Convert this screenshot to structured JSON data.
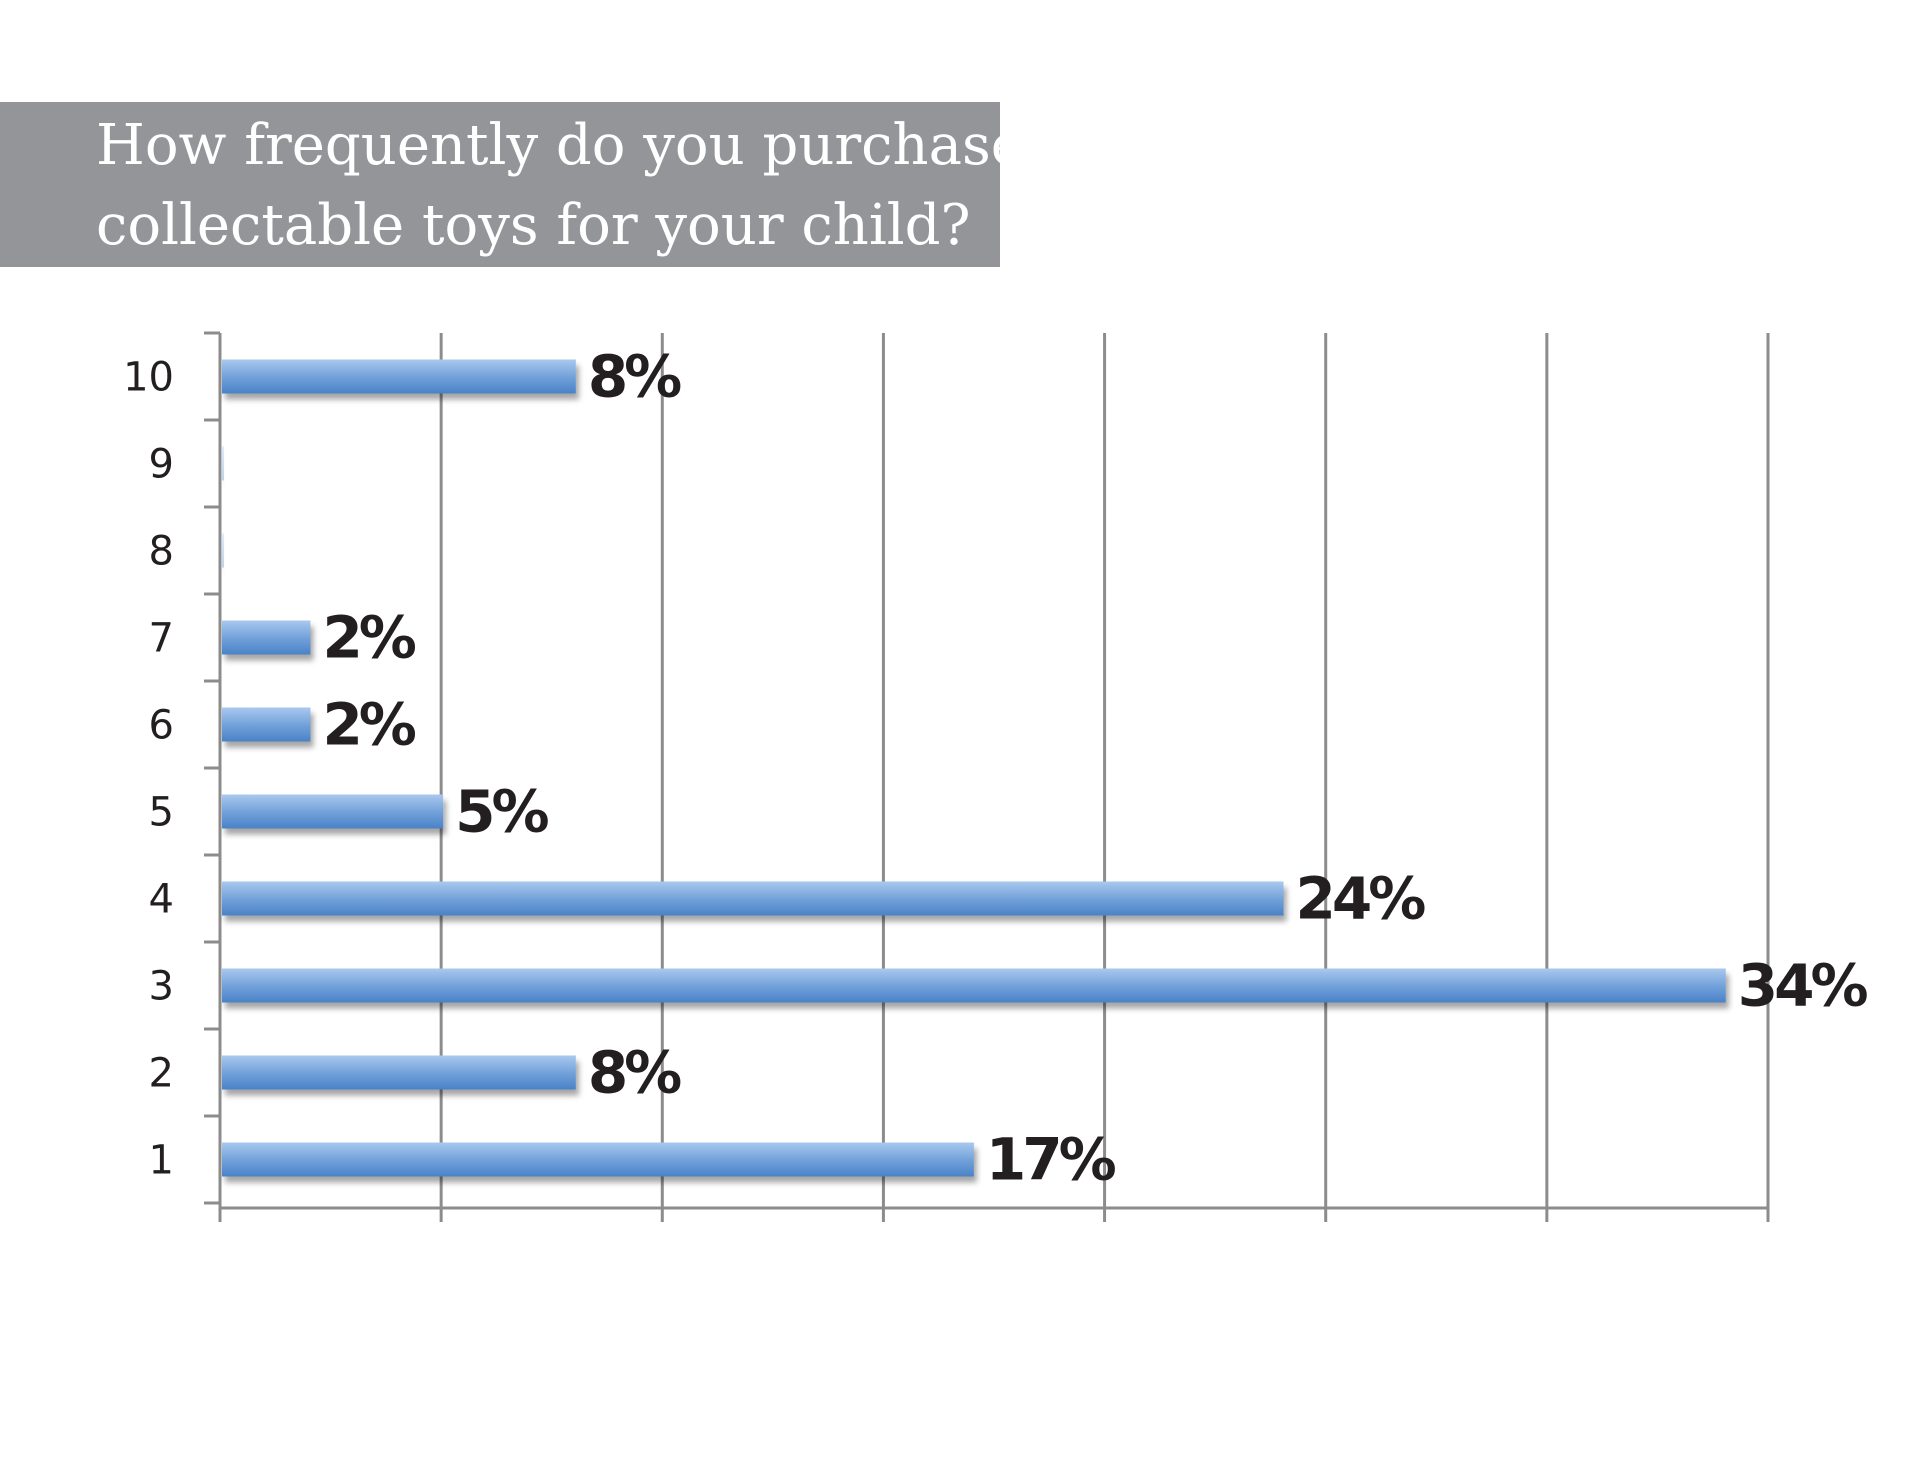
{
  "title": {
    "line1": "How frequently do you purchase",
    "line2": "collectable toys for your child?"
  },
  "colors": {
    "banner": "#939598",
    "bar": "#6f9fd8",
    "bar_light": "#a9c8ee",
    "bar_dark": "#4a82c8",
    "grid": "#8c8c8c",
    "text": "#231f20"
  },
  "chart_data": {
    "type": "bar",
    "orientation": "horizontal",
    "title": "How frequently do you purchase collectable toys for your child?",
    "categories": [
      "10",
      "9",
      "8",
      "7",
      "6",
      "5",
      "4",
      "3",
      "2",
      "1"
    ],
    "values": [
      8,
      0,
      0,
      2,
      2,
      5,
      24,
      34,
      8,
      17
    ],
    "value_labels": [
      "8%",
      "",
      "",
      "2%",
      "2%",
      "5%",
      "24%",
      "34%",
      "8%",
      "17%"
    ],
    "xlim": [
      0,
      35
    ],
    "grid": true,
    "legend": "none"
  }
}
